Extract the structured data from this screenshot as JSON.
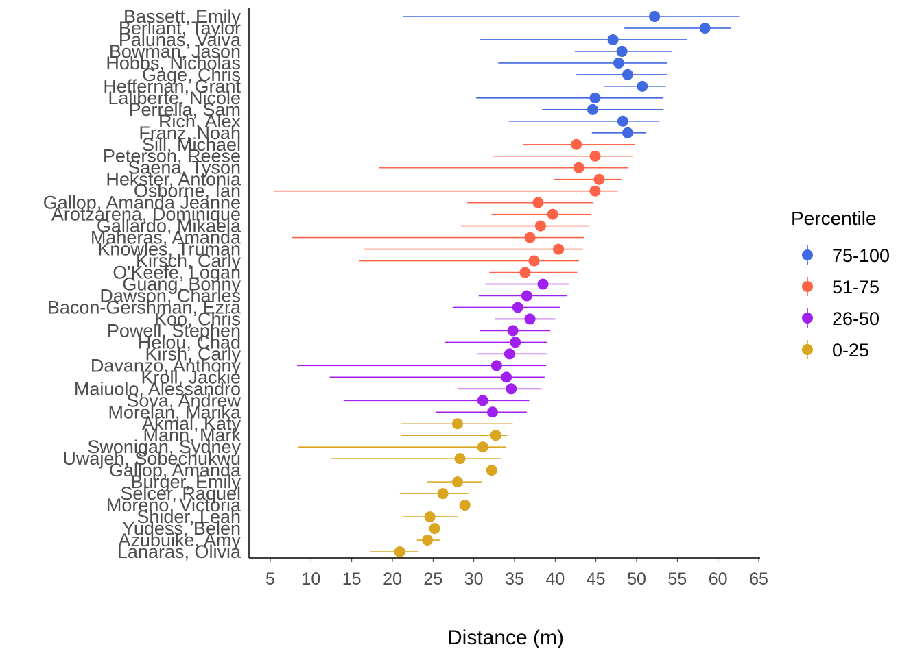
{
  "chart_data": {
    "type": "scatter",
    "subtype": "point-range (dot with horizontal interval)",
    "xlabel": "Distance (m)",
    "ylabel": "",
    "xlim": [
      2.5,
      65.5
    ],
    "xticks": [
      5,
      10,
      15,
      20,
      25,
      30,
      35,
      40,
      45,
      50,
      55,
      60,
      65
    ],
    "grid": false,
    "legend": {
      "title": "Percentile",
      "position": "right",
      "entries": [
        {
          "label": "75-100",
          "color": "#4169E1"
        },
        {
          "label": "51-75",
          "color": "#FF6347"
        },
        {
          "label": "26-50",
          "color": "#A020F0"
        },
        {
          "label": "0-25",
          "color": "#DAA520"
        }
      ]
    },
    "rows": [
      {
        "name": "Bassett, Emily",
        "value": 52.2,
        "low": 21.3,
        "high": 62.6,
        "group": "75-100"
      },
      {
        "name": "Berliant, Taylor",
        "value": 58.4,
        "low": 48.5,
        "high": 61.6,
        "group": "75-100"
      },
      {
        "name": "Palunas, Vaiva",
        "value": 47.1,
        "low": 30.8,
        "high": 56.2,
        "group": "75-100"
      },
      {
        "name": "Bowman, Jason",
        "value": 48.2,
        "low": 42.4,
        "high": 54.4,
        "group": "75-100"
      },
      {
        "name": "Hobbs, Nicholas",
        "value": 47.8,
        "low": 33.0,
        "high": 53.8,
        "group": "75-100"
      },
      {
        "name": "Gage, Chris",
        "value": 48.9,
        "low": 42.6,
        "high": 53.8,
        "group": "75-100"
      },
      {
        "name": "Heffernan, Grant",
        "value": 50.7,
        "low": 46.0,
        "high": 53.6,
        "group": "75-100"
      },
      {
        "name": "Laliberte, Nicole",
        "value": 44.9,
        "low": 30.3,
        "high": 53.3,
        "group": "75-100"
      },
      {
        "name": "Perrella, Sam",
        "value": 44.6,
        "low": 38.4,
        "high": 53.3,
        "group": "75-100"
      },
      {
        "name": "Rich, Alex",
        "value": 48.3,
        "low": 34.3,
        "high": 52.8,
        "group": "75-100"
      },
      {
        "name": "Franz, Noah",
        "value": 48.9,
        "low": 44.5,
        "high": 51.2,
        "group": "75-100"
      },
      {
        "name": "Sill, Michael",
        "value": 42.6,
        "low": 36.1,
        "high": 49.8,
        "group": "51-75"
      },
      {
        "name": "Peterson, Reese",
        "value": 44.9,
        "low": 32.3,
        "high": 49.5,
        "group": "51-75"
      },
      {
        "name": "Saena, Tyson",
        "value": 42.9,
        "low": 18.4,
        "high": 49.0,
        "group": "51-75"
      },
      {
        "name": "Hekster, Antonia",
        "value": 45.4,
        "low": 39.9,
        "high": 48.1,
        "group": "51-75"
      },
      {
        "name": "Osborne, Ian",
        "value": 44.9,
        "low": 5.5,
        "high": 47.7,
        "group": "51-75"
      },
      {
        "name": "Gallop, Amanda Jeanne",
        "value": 37.9,
        "low": 29.2,
        "high": 44.7,
        "group": "51-75"
      },
      {
        "name": "Arotzarena, Dominique",
        "value": 39.7,
        "low": 32.2,
        "high": 44.4,
        "group": "51-75"
      },
      {
        "name": "Gallardo, Mikaela",
        "value": 38.2,
        "low": 28.4,
        "high": 44.2,
        "group": "51-75"
      },
      {
        "name": "Maheras, Amanda",
        "value": 36.9,
        "low": 7.7,
        "high": 43.6,
        "group": "51-75"
      },
      {
        "name": "Knowles, Truman",
        "value": 40.4,
        "low": 16.5,
        "high": 43.4,
        "group": "51-75"
      },
      {
        "name": "Kirsch, Carly",
        "value": 37.4,
        "low": 15.9,
        "high": 42.9,
        "group": "51-75"
      },
      {
        "name": "O'Keefe, Logan",
        "value": 36.3,
        "low": 31.9,
        "high": 42.7,
        "group": "51-75"
      },
      {
        "name": "Guang, Bonny",
        "value": 38.5,
        "low": 31.4,
        "high": 41.7,
        "group": "26-50"
      },
      {
        "name": "Dawson, Charles",
        "value": 36.5,
        "low": 30.6,
        "high": 41.5,
        "group": "26-50"
      },
      {
        "name": "Bacon-Gershman, Ezra",
        "value": 35.4,
        "low": 27.4,
        "high": 40.6,
        "group": "26-50"
      },
      {
        "name": "Koo, Chris",
        "value": 36.9,
        "low": 32.6,
        "high": 40.0,
        "group": "26-50"
      },
      {
        "name": "Powell, Stephen",
        "value": 34.8,
        "low": 30.7,
        "high": 39.4,
        "group": "26-50"
      },
      {
        "name": "Helou, Chad",
        "value": 35.1,
        "low": 26.4,
        "high": 39.0,
        "group": "26-50"
      },
      {
        "name": "Kirsh, Carly",
        "value": 34.4,
        "low": 30.4,
        "high": 39.0,
        "group": "26-50"
      },
      {
        "name": "Davanzo, Anthony",
        "value": 32.8,
        "low": 8.3,
        "high": 38.9,
        "group": "26-50"
      },
      {
        "name": "Kroll, Jackie",
        "value": 34.0,
        "low": 12.3,
        "high": 38.7,
        "group": "26-50"
      },
      {
        "name": "Maiuolo, Alessandro",
        "value": 34.6,
        "low": 28.0,
        "high": 38.3,
        "group": "26-50"
      },
      {
        "name": "Sova, Andrew",
        "value": 31.1,
        "low": 14.0,
        "high": 36.8,
        "group": "26-50"
      },
      {
        "name": "Morelan, Marika",
        "value": 32.3,
        "low": 25.3,
        "high": 36.5,
        "group": "26-50"
      },
      {
        "name": "Akmal, Katy",
        "value": 28.0,
        "low": 21.0,
        "high": 34.8,
        "group": "0-25"
      },
      {
        "name": "Mann, Mark",
        "value": 32.7,
        "low": 21.1,
        "high": 34.1,
        "group": "0-25"
      },
      {
        "name": "Swonigan, Sydney",
        "value": 31.1,
        "low": 8.4,
        "high": 33.9,
        "group": "0-25"
      },
      {
        "name": "Uwajeh, Sobechukwu",
        "value": 28.3,
        "low": 12.5,
        "high": 33.4,
        "group": "0-25"
      },
      {
        "name": "Gallop, Amanda",
        "value": 32.2,
        "low": null,
        "high": null,
        "group": "0-25"
      },
      {
        "name": "Burger, Emily",
        "value": 28.0,
        "low": 24.3,
        "high": 31.0,
        "group": "0-25"
      },
      {
        "name": "Selcer, Raquel",
        "value": 26.2,
        "low": 20.9,
        "high": 29.4,
        "group": "0-25"
      },
      {
        "name": "Moreno, Victoria",
        "value": 28.9,
        "low": null,
        "high": null,
        "group": "0-25"
      },
      {
        "name": "Shider, Leah",
        "value": 24.6,
        "low": 21.3,
        "high": 28.0,
        "group": "0-25"
      },
      {
        "name": "Yudess, Belen",
        "value": 25.2,
        "low": null,
        "high": null,
        "group": "0-25"
      },
      {
        "name": "Azubuike, Amy",
        "value": 24.3,
        "low": 23.0,
        "high": 25.9,
        "group": "0-25"
      },
      {
        "name": "Lanaras, Olivia",
        "value": 20.9,
        "low": 17.3,
        "high": 23.2,
        "group": "0-25"
      }
    ]
  }
}
